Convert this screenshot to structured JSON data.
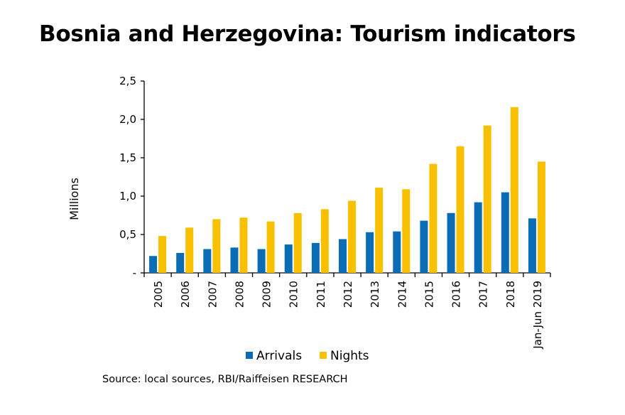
{
  "title": "Bosnia and Herzegovina: Tourism indicators",
  "source": "Source: local sources, RBI/Raiffeisen RESEARCH",
  "chart_data": {
    "type": "bar",
    "title": "Bosnia and Herzegovina: Tourism indicators",
    "xlabel": "",
    "ylabel": "Millions",
    "ylim": [
      0,
      2.5
    ],
    "yticks": [
      0,
      0.5,
      1.0,
      1.5,
      2.0,
      2.5
    ],
    "ytick_labels": [
      "-",
      "0,5",
      "1,0",
      "1,5",
      "2,0",
      "2,5"
    ],
    "categories": [
      "2005",
      "2006",
      "2007",
      "2008",
      "2009",
      "2010",
      "2011",
      "2012",
      "2013",
      "2014",
      "2015",
      "2016",
      "2017",
      "2018",
      "Jan-Jun 2019"
    ],
    "series": [
      {
        "name": "Arrivals",
        "color": "#0a6cb5",
        "values": [
          0.22,
          0.26,
          0.31,
          0.33,
          0.31,
          0.37,
          0.39,
          0.44,
          0.53,
          0.54,
          0.68,
          0.78,
          0.92,
          1.05,
          0.71
        ]
      },
      {
        "name": "Nights",
        "color": "#f9c000",
        "values": [
          0.48,
          0.59,
          0.7,
          0.72,
          0.67,
          0.78,
          0.83,
          0.94,
          1.11,
          1.09,
          1.42,
          1.65,
          1.92,
          2.16,
          1.45
        ]
      }
    ],
    "legend_position": "bottom",
    "grid": false
  }
}
